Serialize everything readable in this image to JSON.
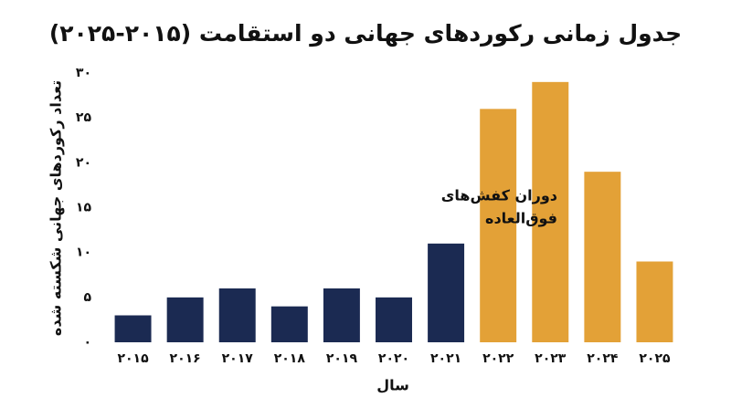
{
  "chart_data": {
    "type": "bar",
    "title": "جدول زمانی رکوردهای جهانی دو استقامت (۲۰۱۵-۲۰۲۵)",
    "x_label": "سال",
    "y_label": "تعداد رکوردهای جهانی شکسته شده",
    "categories": [
      "۲۰۱۵",
      "۲۰۱۶",
      "۲۰۱۷",
      "۲۰۱۸",
      "۲۰۱۹",
      "۲۰۲۰",
      "۲۰۲۱",
      "۲۰۲۲",
      "۲۰۲۳",
      "۲۰۲۴",
      "۲۰۲۵"
    ],
    "values": [
      3,
      5,
      6,
      4,
      6,
      5,
      11,
      26,
      29,
      19,
      9
    ],
    "colors": [
      "#1b2a52",
      "#1b2a52",
      "#1b2a52",
      "#1b2a52",
      "#1b2a52",
      "#1b2a52",
      "#1b2a52",
      "#e3a137",
      "#e3a137",
      "#e3a137",
      "#e3a137"
    ],
    "ylim": [
      0,
      30
    ],
    "yticks": [
      {
        "value": 0,
        "label": "۰"
      },
      {
        "value": 5,
        "label": "۵"
      },
      {
        "value": 10,
        "label": "۱۰"
      },
      {
        "value": 15,
        "label": "۱۵"
      },
      {
        "value": 20,
        "label": "۲۰"
      },
      {
        "value": 25,
        "label": "۲۵"
      },
      {
        "value": 30,
        "label": "۳۰"
      }
    ],
    "grid": false,
    "annotation": [
      "دوران کفش‌های",
      "فوق‌العاده"
    ]
  }
}
